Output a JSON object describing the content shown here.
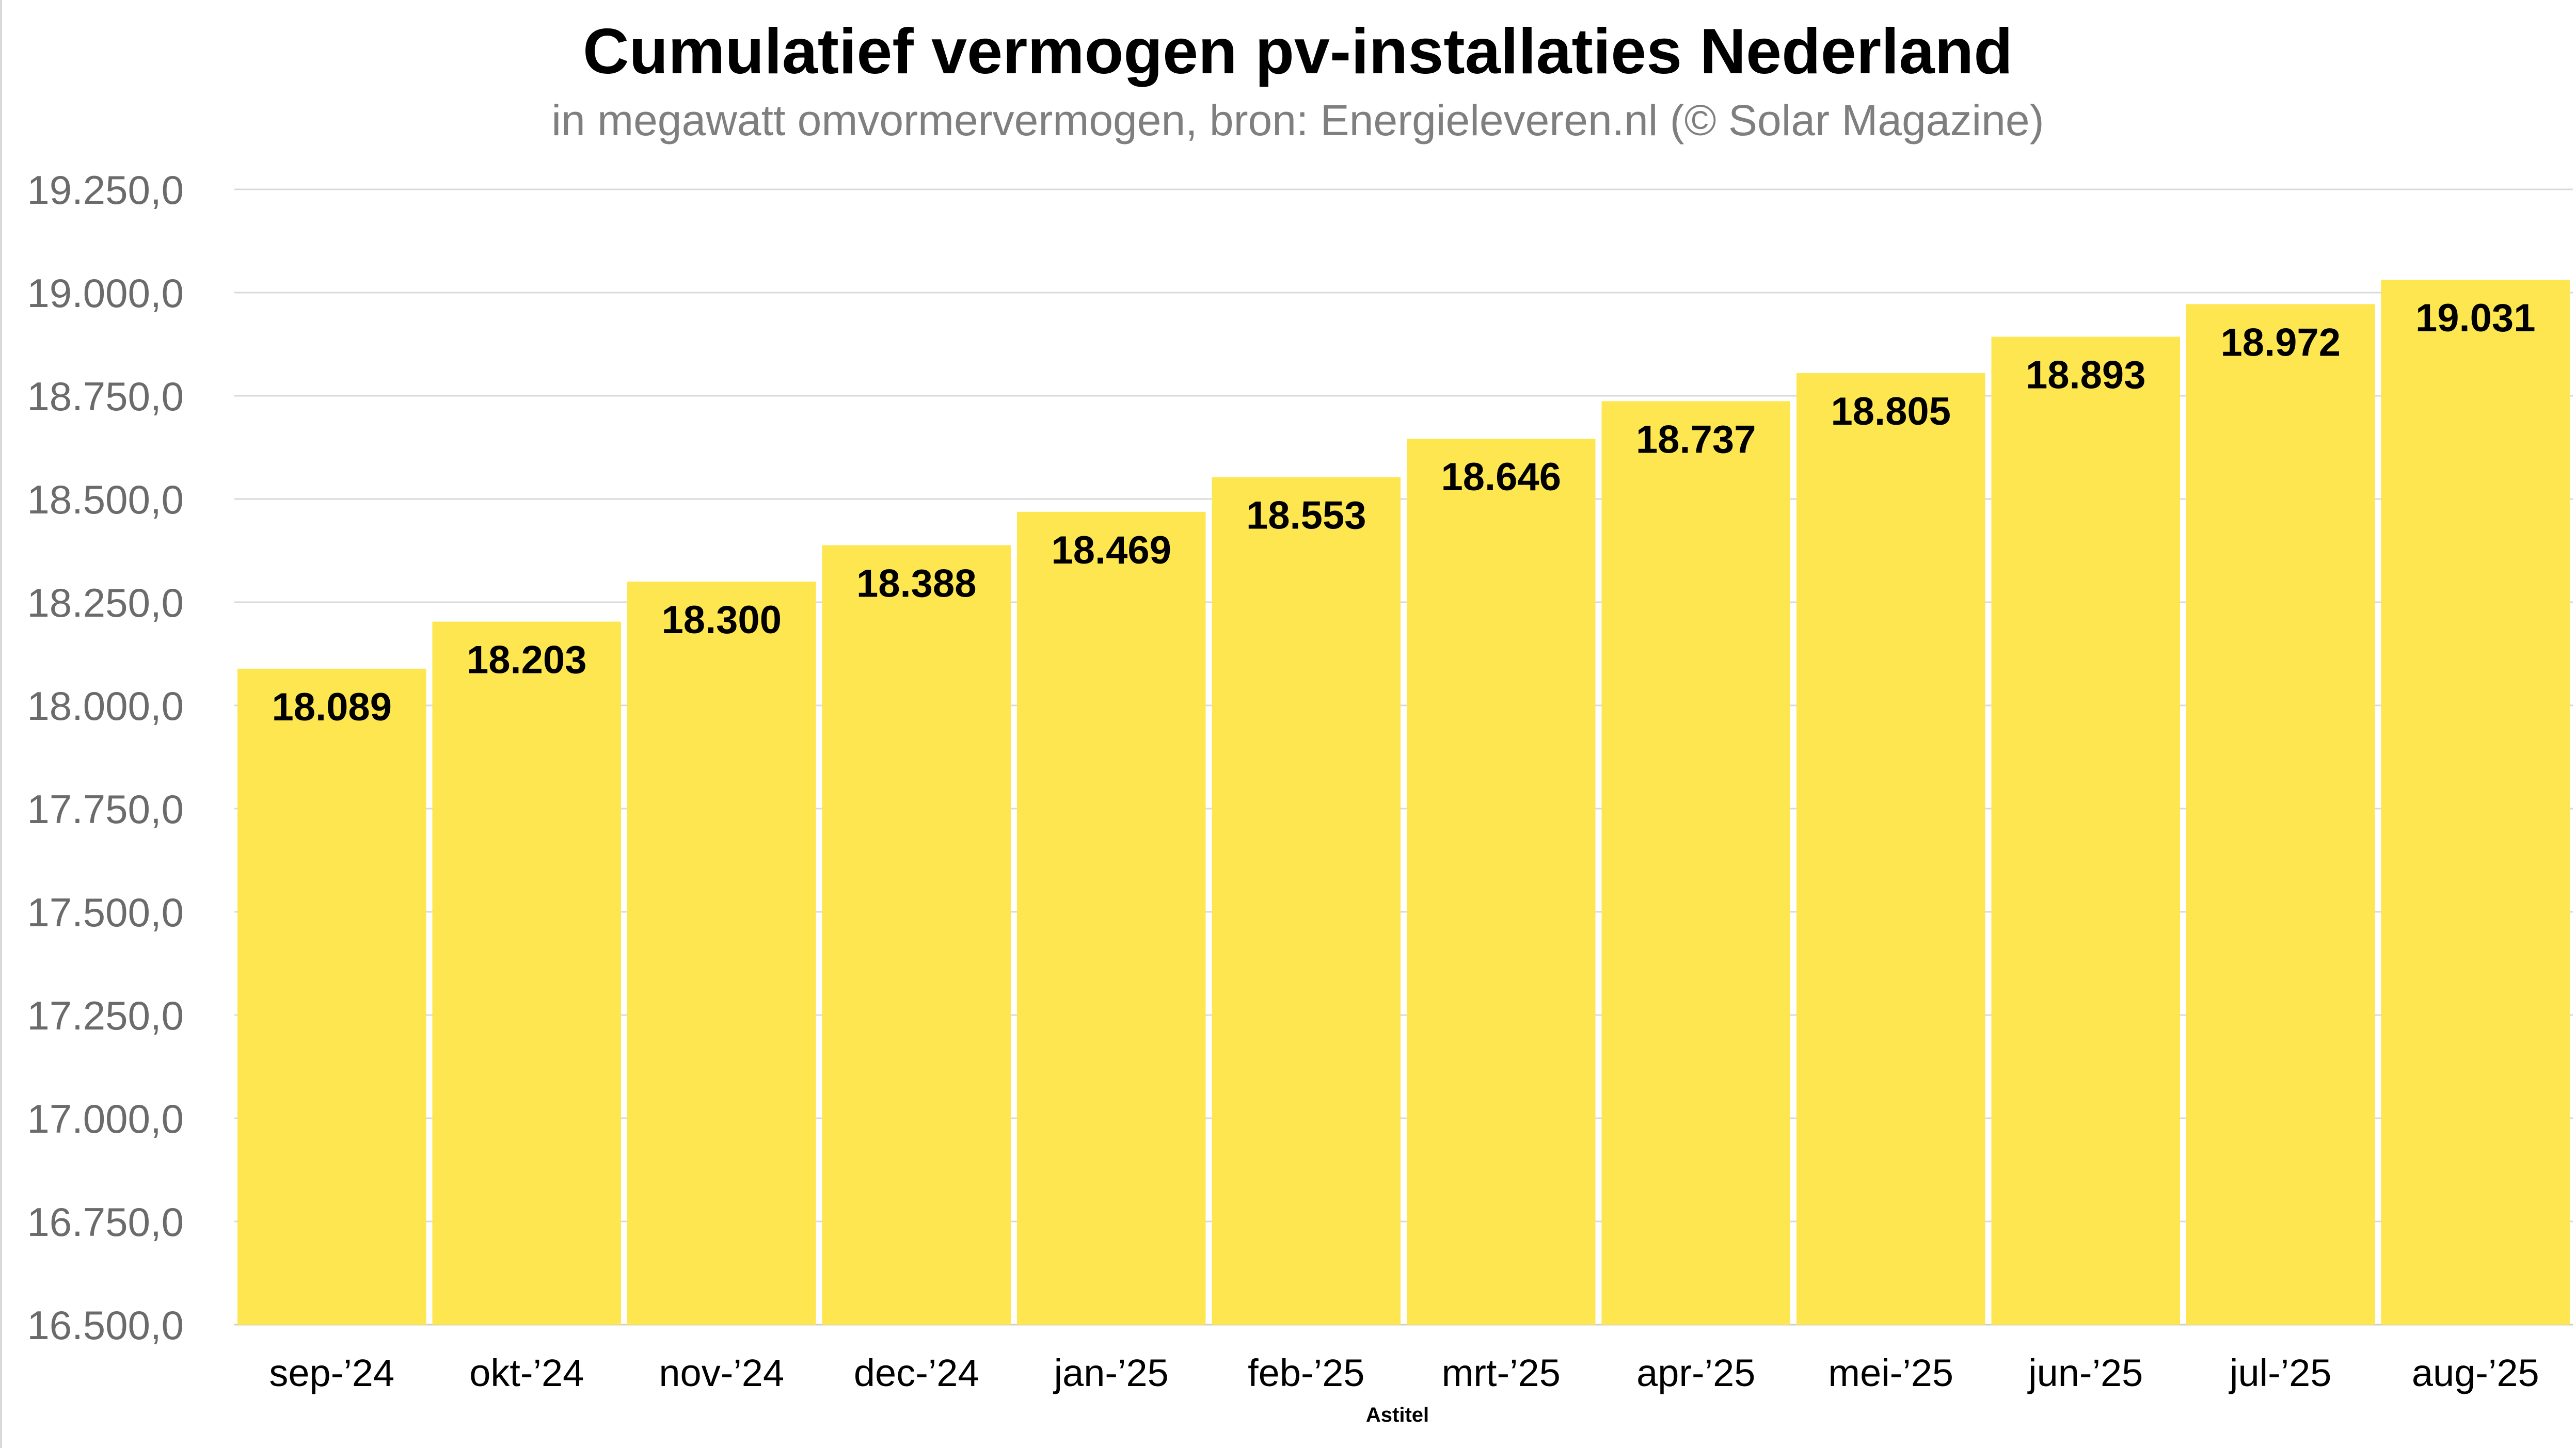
{
  "chart_data": {
    "type": "bar",
    "title": "Cumulatief vermogen pv-installaties Nederland",
    "subtitle": "in megawatt omvormervermogen, bron: Energieleveren.nl (© Solar Magazine)",
    "xlabel": "Astitel",
    "ylabel": "",
    "categories": [
      "sep-’24",
      "okt-’24",
      "nov-’24",
      "dec-’24",
      "jan-’25",
      "feb-’25",
      "mrt-’25",
      "apr-’25",
      "mei-’25",
      "jun-’25",
      "jul-’25",
      "aug-’25"
    ],
    "values": [
      18089,
      18203,
      18300,
      18388,
      18469,
      18553,
      18646,
      18737,
      18805,
      18893,
      18972,
      19031
    ],
    "data_labels": [
      "18.089",
      "18.203",
      "18.300",
      "18.388",
      "18.469",
      "18.553",
      "18.646",
      "18.737",
      "18.805",
      "18.893",
      "18.972",
      "19.031"
    ],
    "ylim": [
      16500,
      19250
    ],
    "yticks": [
      16500,
      16750,
      17000,
      17250,
      17500,
      17750,
      18000,
      18250,
      18500,
      18750,
      19000,
      19250
    ],
    "ytick_labels": [
      "16.500,0",
      "16.750,0",
      "17.000,0",
      "17.250,0",
      "17.500,0",
      "17.750,0",
      "18.000,0",
      "18.250,0",
      "18.500,0",
      "18.750,0",
      "19.000,0",
      "19.250,0"
    ],
    "grid": true,
    "bar_color": "#fde64f",
    "legend": "none"
  }
}
